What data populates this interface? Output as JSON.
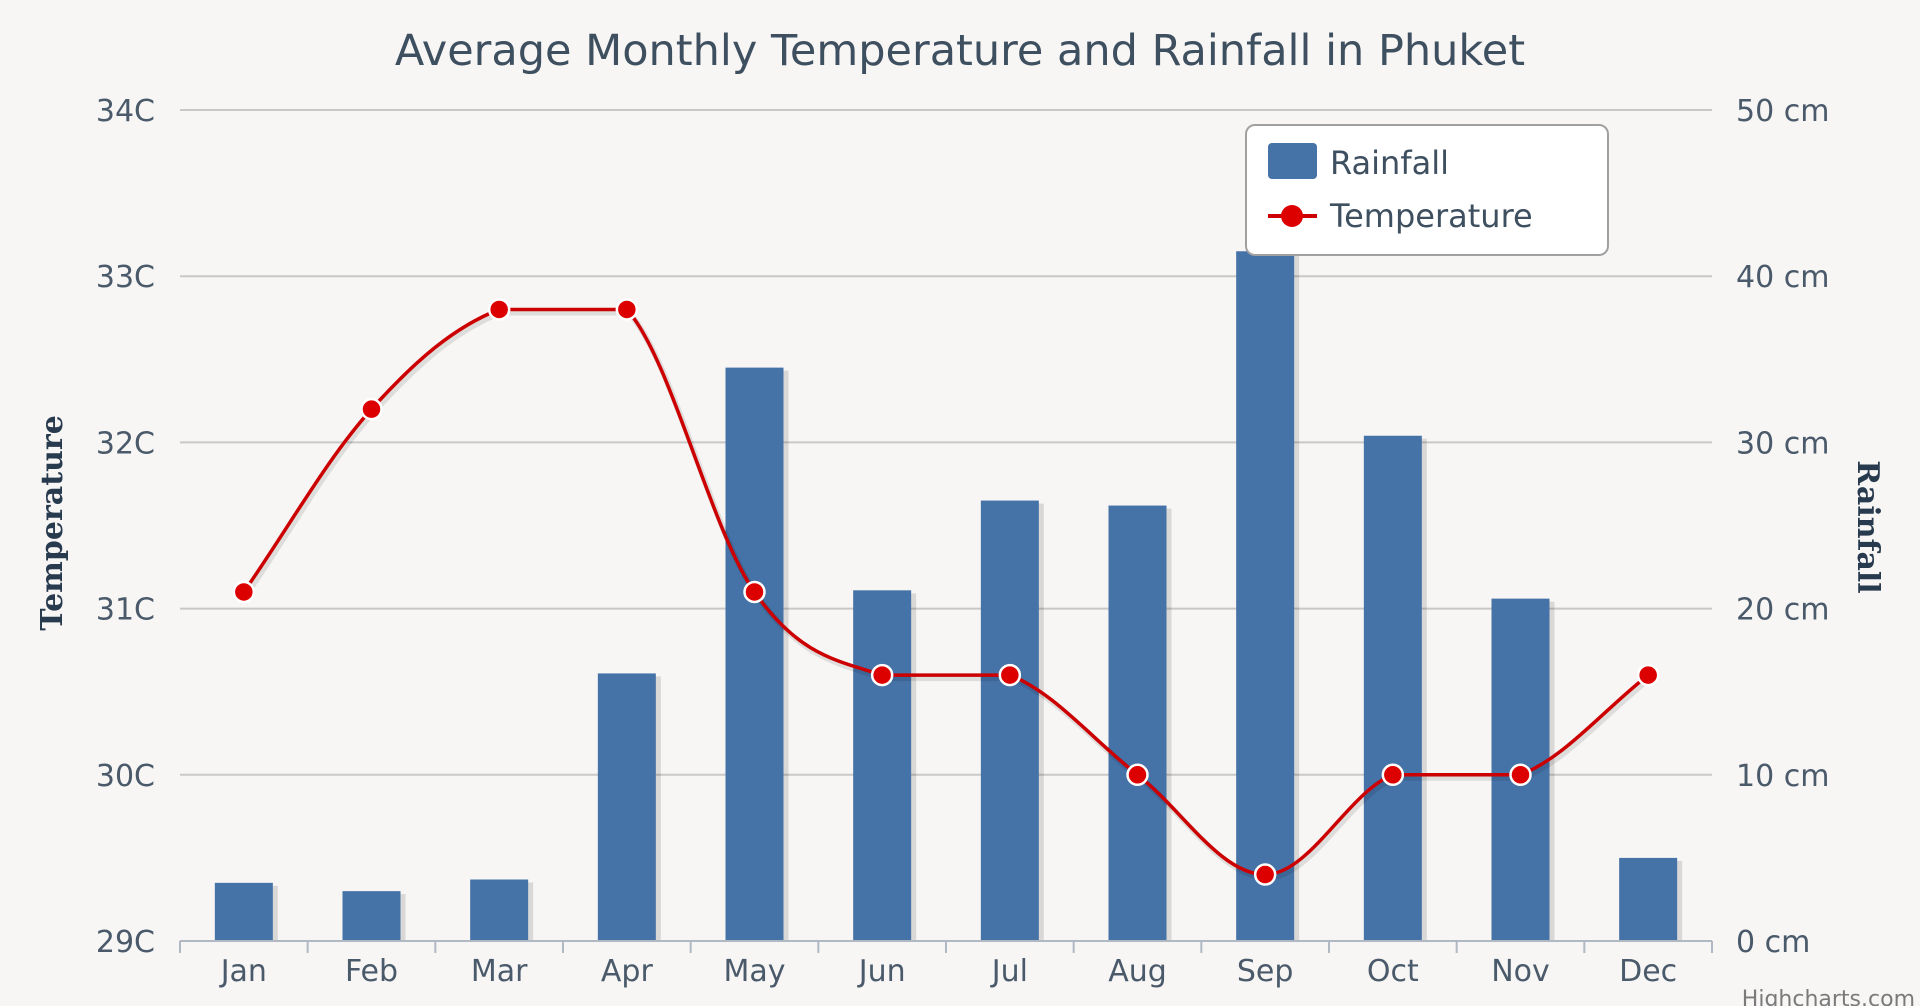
{
  "chart_data": {
    "type": "bar+line",
    "title": "Average Monthly Temperature and Rainfall in Phuket",
    "categories": [
      "Jan",
      "Feb",
      "Mar",
      "Apr",
      "May",
      "Jun",
      "Jul",
      "Aug",
      "Sep",
      "Oct",
      "Nov",
      "Dec"
    ],
    "series": [
      {
        "name": "Rainfall",
        "type": "bar",
        "axis": "right",
        "color": "#4572a7",
        "values": [
          3.5,
          3.0,
          3.7,
          16.1,
          34.5,
          21.1,
          26.5,
          26.2,
          41.5,
          30.4,
          20.6,
          5.0
        ]
      },
      {
        "name": "Temperature",
        "type": "line",
        "axis": "left",
        "color": "#cc0000",
        "values": [
          31.1,
          32.2,
          32.8,
          32.8,
          31.1,
          30.6,
          30.6,
          30.0,
          29.4,
          30.0,
          30.0,
          30.6
        ]
      }
    ],
    "yAxisLeft": {
      "title": "Temperature",
      "min": 29,
      "max": 34,
      "ticks": [
        "29C",
        "30C",
        "31C",
        "32C",
        "33C",
        "34C"
      ]
    },
    "yAxisRight": {
      "title": "Rainfall",
      "min": 0,
      "max": 50,
      "ticks": [
        "0 cm",
        "10 cm",
        "20 cm",
        "30 cm",
        "40 cm",
        "50 cm"
      ]
    },
    "legend": {
      "position": "top-right",
      "items": [
        "Rainfall",
        "Temperature"
      ]
    },
    "credits": "Highcharts.com"
  }
}
